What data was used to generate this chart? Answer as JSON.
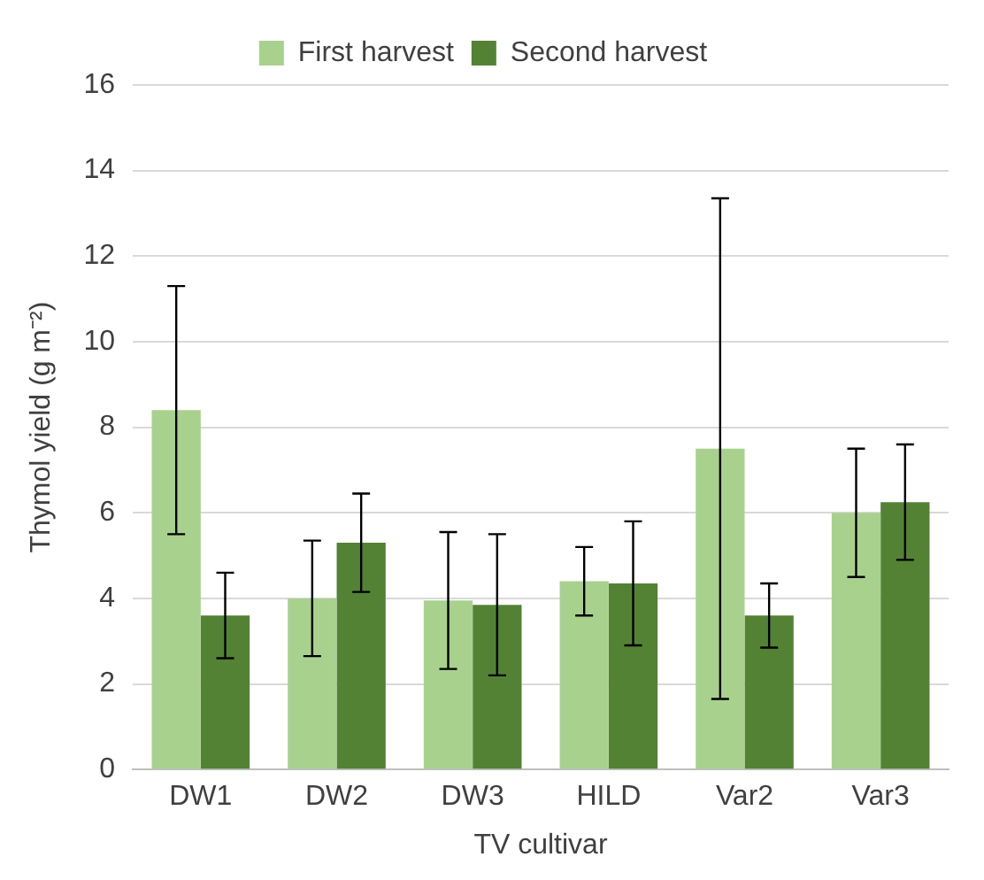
{
  "chart_data": {
    "type": "bar",
    "xlabel": "TV cultivar",
    "ylabel": "Thymol yield (g m⁻²)",
    "categories": [
      "DW1",
      "DW2",
      "DW3",
      "HILD",
      "Var2",
      "Var3"
    ],
    "series": [
      {
        "name": "First harvest",
        "color": "#a9d18e",
        "values": [
          8.4,
          4.0,
          3.95,
          4.4,
          7.5,
          6.0
        ],
        "errors": [
          2.9,
          1.35,
          1.6,
          0.8,
          5.85,
          1.5
        ]
      },
      {
        "name": "Second harvest",
        "color": "#548235",
        "values": [
          3.6,
          5.3,
          3.85,
          4.35,
          3.6,
          6.25
        ],
        "errors": [
          1.0,
          1.15,
          1.65,
          1.45,
          0.75,
          1.35
        ]
      }
    ],
    "ylim": [
      0,
      16
    ],
    "yticks": [
      0,
      2,
      4,
      6,
      8,
      10,
      12,
      14,
      16
    ],
    "grid": "y",
    "legend": "top"
  }
}
